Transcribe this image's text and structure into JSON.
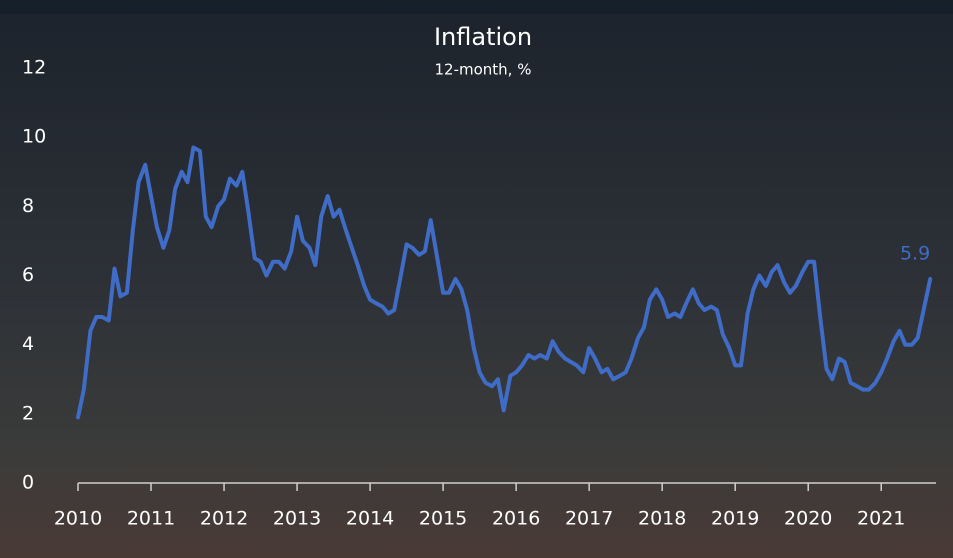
{
  "chart_data": {
    "type": "line",
    "title": "Inflation",
    "subtitle": "12-month, %",
    "x": [
      2010,
      2010.08,
      2010.17,
      2010.25,
      2010.33,
      2010.42,
      2010.5,
      2010.58,
      2010.67,
      2010.75,
      2010.83,
      2010.92,
      2011,
      2011.08,
      2011.17,
      2011.25,
      2011.33,
      2011.42,
      2011.5,
      2011.58,
      2011.67,
      2011.75,
      2011.83,
      2011.92,
      2012,
      2012.08,
      2012.17,
      2012.25,
      2012.33,
      2012.42,
      2012.5,
      2012.58,
      2012.67,
      2012.75,
      2012.83,
      2012.92,
      2013,
      2013.08,
      2013.17,
      2013.25,
      2013.33,
      2013.42,
      2013.5,
      2013.58,
      2013.67,
      2013.75,
      2013.83,
      2013.92,
      2014,
      2014.08,
      2014.17,
      2014.25,
      2014.33,
      2014.42,
      2014.5,
      2014.58,
      2014.67,
      2014.75,
      2014.83,
      2014.92,
      2015,
      2015.08,
      2015.17,
      2015.25,
      2015.33,
      2015.42,
      2015.5,
      2015.58,
      2015.67,
      2015.75,
      2015.83,
      2015.92,
      2016,
      2016.08,
      2016.17,
      2016.25,
      2016.33,
      2016.42,
      2016.5,
      2016.58,
      2016.67,
      2016.75,
      2016.83,
      2016.92,
      2017,
      2017.08,
      2017.17,
      2017.25,
      2017.33,
      2017.42,
      2017.5,
      2017.58,
      2017.67,
      2017.75,
      2017.83,
      2017.92,
      2018,
      2018.08,
      2018.17,
      2018.25,
      2018.33,
      2018.42,
      2018.5,
      2018.58,
      2018.67,
      2018.75,
      2018.83,
      2018.92,
      2019,
      2019.08,
      2019.17,
      2019.25,
      2019.33,
      2019.42,
      2019.5,
      2019.58,
      2019.67,
      2019.75,
      2019.83,
      2019.92,
      2020,
      2020.08,
      2020.17,
      2020.25,
      2020.33,
      2020.42,
      2020.5,
      2020.58,
      2020.67,
      2020.75,
      2020.83,
      2020.92,
      2021,
      2021.08,
      2021.17,
      2021.25,
      2021.33,
      2021.42,
      2021.5,
      2021.58,
      2021.67
    ],
    "series": [
      {
        "color": "#3f6cc6",
        "values": [
          1.9,
          2.7,
          4.4,
          4.8,
          4.8,
          4.7,
          6.2,
          5.4,
          5.5,
          7.3,
          8.7,
          9.2,
          8.3,
          7.4,
          6.8,
          7.3,
          8.5,
          9.0,
          8.7,
          9.7,
          9.6,
          7.7,
          7.4,
          8.0,
          8.2,
          8.8,
          8.6,
          9.0,
          7.9,
          6.5,
          6.4,
          6.0,
          6.4,
          6.4,
          6.2,
          6.7,
          7.7,
          7.0,
          6.8,
          6.3,
          7.7,
          8.3,
          7.7,
          7.9,
          7.3,
          6.8,
          6.3,
          5.7,
          5.3,
          5.2,
          5.1,
          4.9,
          5.0,
          6.0,
          6.9,
          6.8,
          6.6,
          6.7,
          7.6,
          6.5,
          5.5,
          5.5,
          5.9,
          5.6,
          5.0,
          3.9,
          3.2,
          2.9,
          2.8,
          3.0,
          2.1,
          3.1,
          3.2,
          3.4,
          3.7,
          3.6,
          3.7,
          3.6,
          4.1,
          3.8,
          3.6,
          3.5,
          3.4,
          3.2,
          3.9,
          3.6,
          3.2,
          3.3,
          3.0,
          3.1,
          3.2,
          3.6,
          4.2,
          4.5,
          5.3,
          5.6,
          5.3,
          4.8,
          4.9,
          4.8,
          5.2,
          5.6,
          5.2,
          5.0,
          5.1,
          5.0,
          4.3,
          3.9,
          3.4,
          3.4,
          4.9,
          5.6,
          6.0,
          5.7,
          6.1,
          6.3,
          5.8,
          5.5,
          5.7,
          6.1,
          6.4,
          6.4,
          4.7,
          3.3,
          3.0,
          3.6,
          3.5,
          2.9,
          2.8,
          2.7,
          2.7,
          2.9,
          3.2,
          3.6,
          4.1,
          4.4,
          4.0,
          4.0,
          4.2,
          5.0,
          5.9
        ]
      }
    ],
    "xlim": [
      2010,
      2021.75
    ],
    "xticks": [
      2010,
      2011,
      2012,
      2013,
      2014,
      2015,
      2016,
      2017,
      2018,
      2019,
      2020,
      2021
    ],
    "ylim": [
      0,
      12
    ],
    "yticks": [
      0,
      2,
      4,
      6,
      8,
      10,
      12
    ],
    "last_value_label": true
  }
}
